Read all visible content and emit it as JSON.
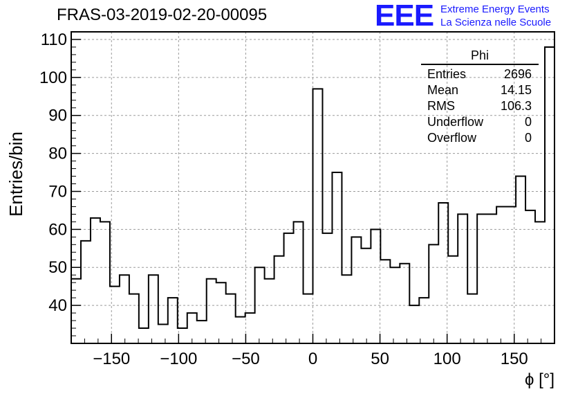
{
  "title": "FRAS-03-2019-02-20-00095",
  "logo": {
    "mark": "EEE",
    "line1": "Extreme Energy Events",
    "line2": "La Scienza nelle Scuole",
    "color": "#1a1aff"
  },
  "stats": {
    "name": "Phi",
    "rows": [
      {
        "label": "Entries",
        "value": "2696"
      },
      {
        "label": "Mean",
        "value": "14.15"
      },
      {
        "label": "RMS",
        "value": "106.3"
      },
      {
        "label": "Underflow",
        "value": "0"
      },
      {
        "label": "Overflow",
        "value": "0"
      }
    ]
  },
  "chart_data": {
    "type": "bar",
    "style": "step-histogram",
    "title": "FRAS-03-2019-02-20-00095",
    "xlabel": "ϕ [°]",
    "ylabel": "Entries/bin",
    "xlim": [
      -180,
      180
    ],
    "ylim": [
      30,
      112
    ],
    "bin_width": 7.2,
    "x_ticks": [
      -150,
      -100,
      -50,
      0,
      50,
      100,
      150
    ],
    "x_tick_labels": [
      "−150",
      "−100",
      "−50",
      "0",
      "50",
      "100",
      "150"
    ],
    "y_ticks": [
      40,
      50,
      60,
      70,
      80,
      90,
      100,
      110
    ],
    "grid": true,
    "values": [
      47,
      57,
      63,
      62,
      45,
      48,
      43,
      34,
      48,
      35,
      42,
      34,
      38,
      36,
      47,
      46,
      43,
      37,
      38,
      50,
      47,
      53,
      59,
      62,
      43,
      97,
      59,
      75,
      48,
      58,
      55,
      60,
      52,
      50,
      51,
      40,
      42,
      56,
      67,
      53,
      64,
      43,
      64,
      64,
      66,
      66,
      74,
      65,
      62,
      108
    ]
  }
}
